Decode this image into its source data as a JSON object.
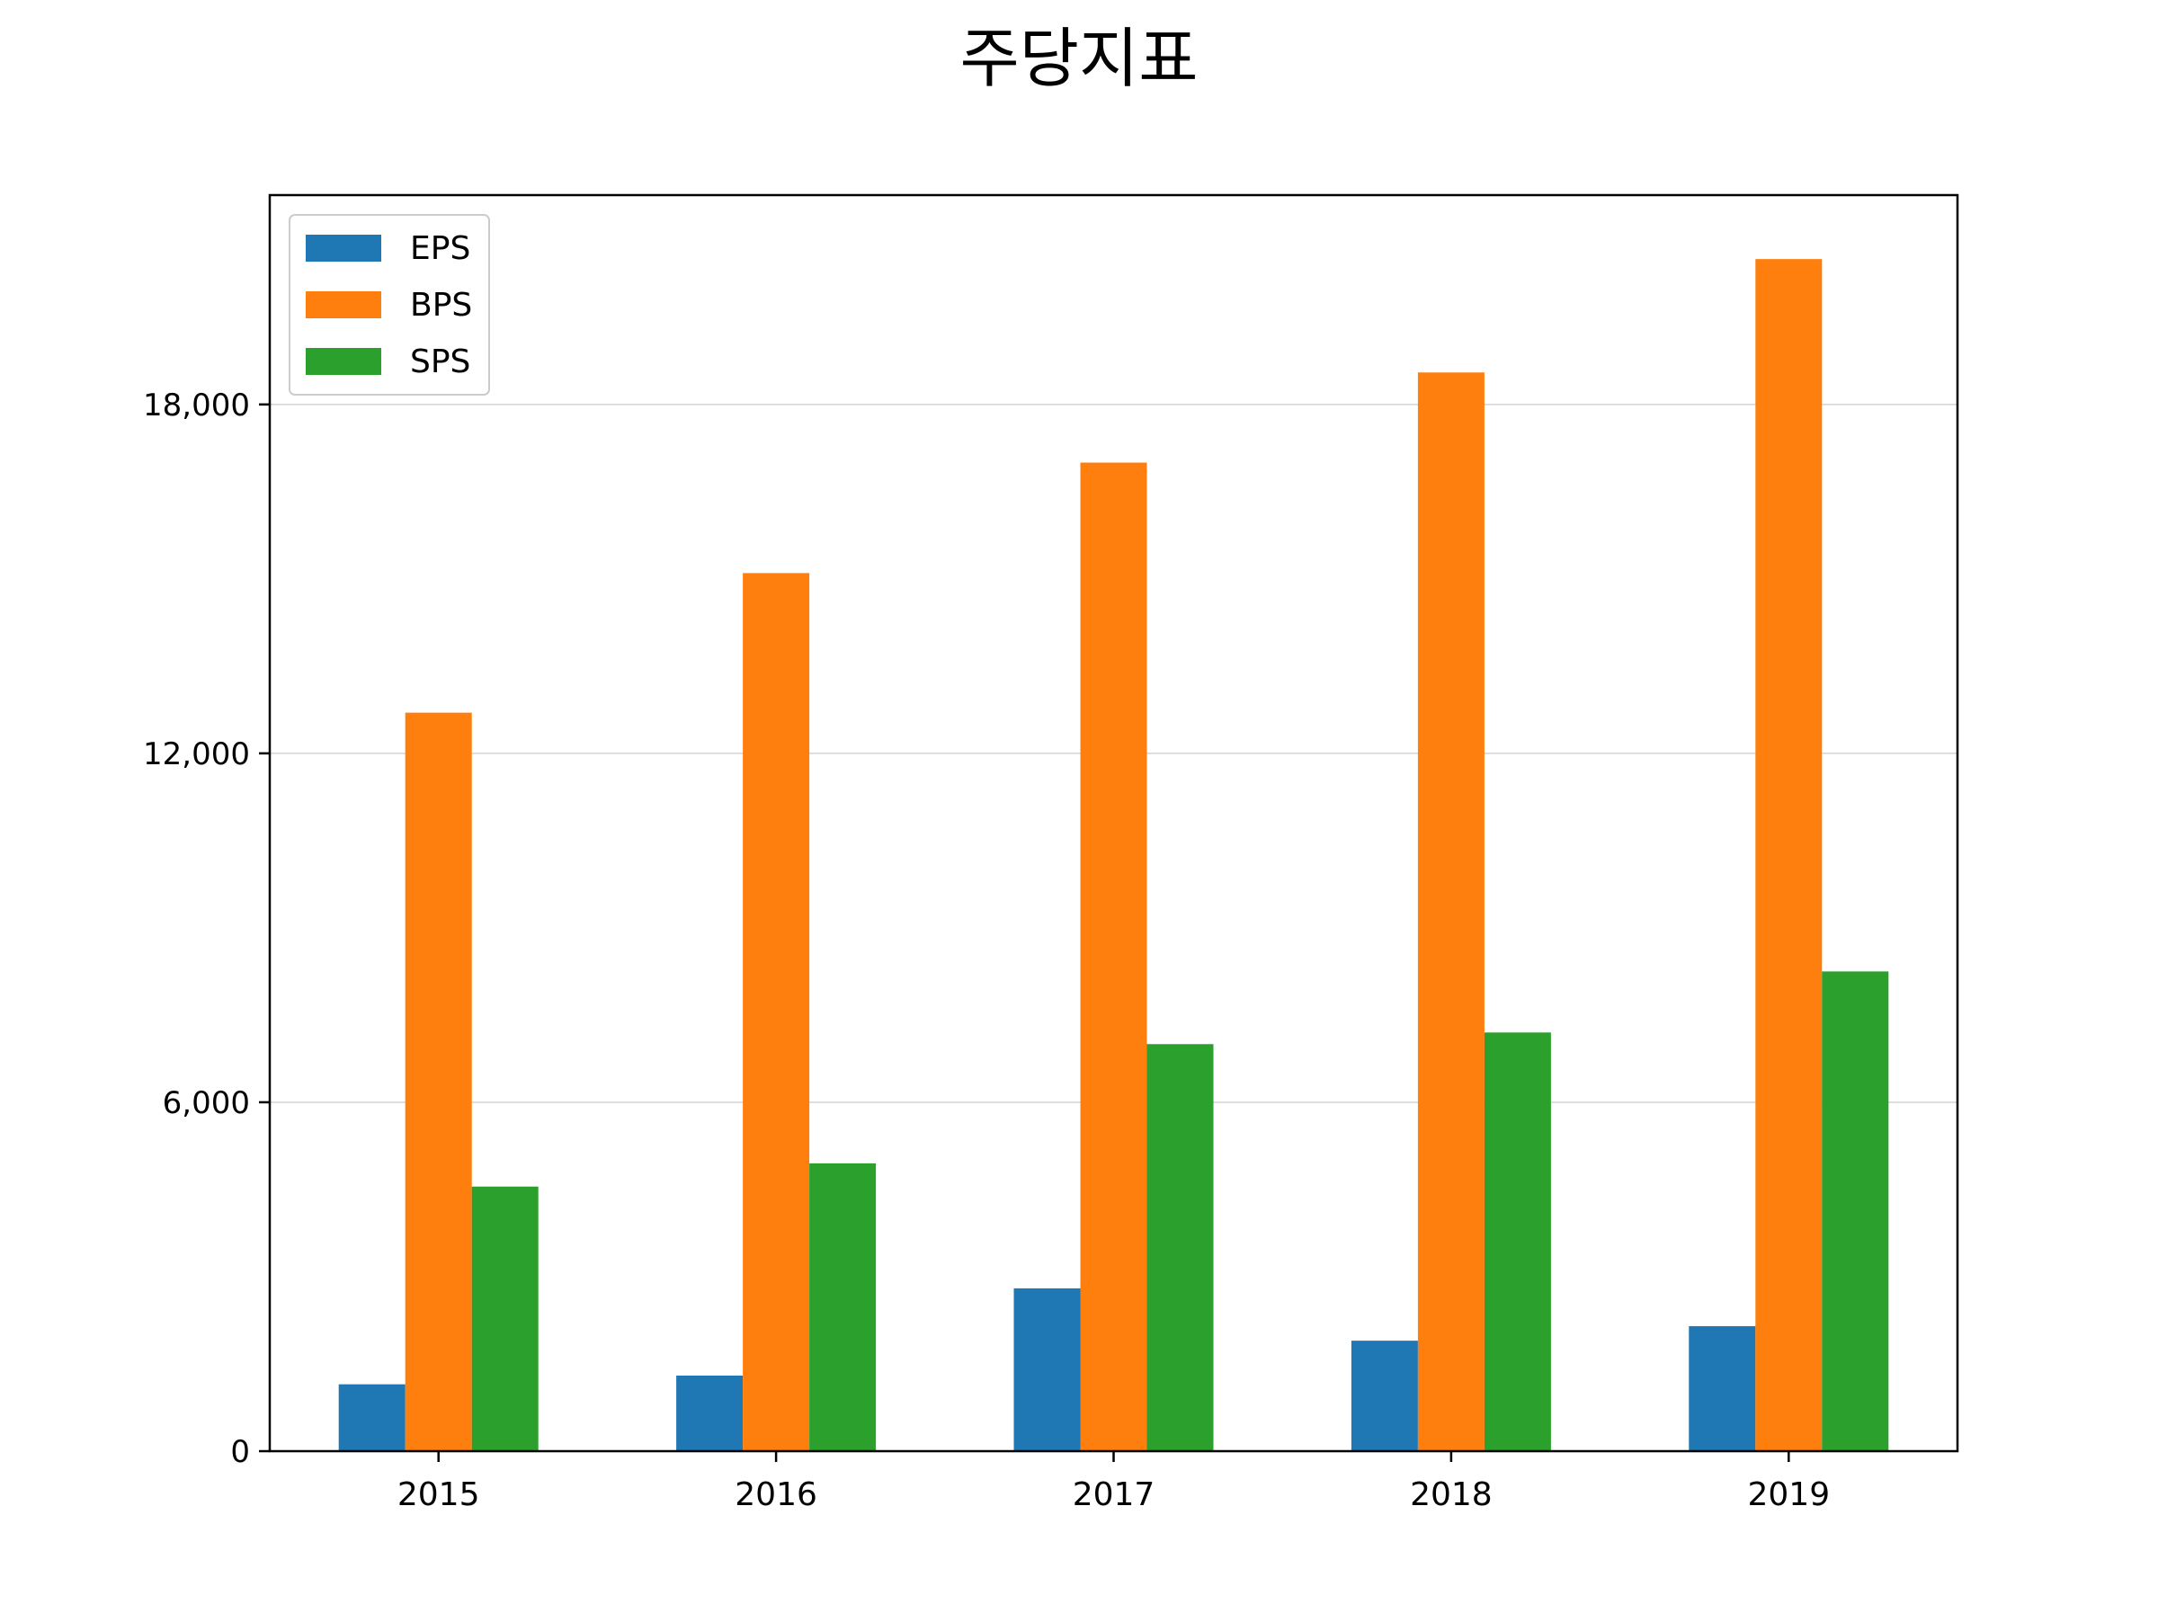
{
  "chart_data": {
    "type": "bar",
    "title": "주당지표",
    "xlabel": "",
    "ylabel": "",
    "categories": [
      "2015",
      "2016",
      "2017",
      "2018",
      "2019"
    ],
    "series": [
      {
        "name": "EPS",
        "color": "#1f77b4",
        "values": [
          1150,
          1300,
          2800,
          1900,
          2150
        ]
      },
      {
        "name": "BPS",
        "color": "#ff7f0e",
        "values": [
          12700,
          15100,
          17000,
          18550,
          20500
        ]
      },
      {
        "name": "SPS",
        "color": "#2ca02c",
        "values": [
          4550,
          4950,
          7000,
          7200,
          8250
        ]
      }
    ],
    "ylim": [
      0,
      21600
    ],
    "yticks": [
      0,
      6000,
      12000,
      18000
    ],
    "ytick_labels": [
      "0",
      "6,000",
      "12,000",
      "18,000"
    ],
    "grid": "horizontal",
    "legend_position": "top-left"
  }
}
